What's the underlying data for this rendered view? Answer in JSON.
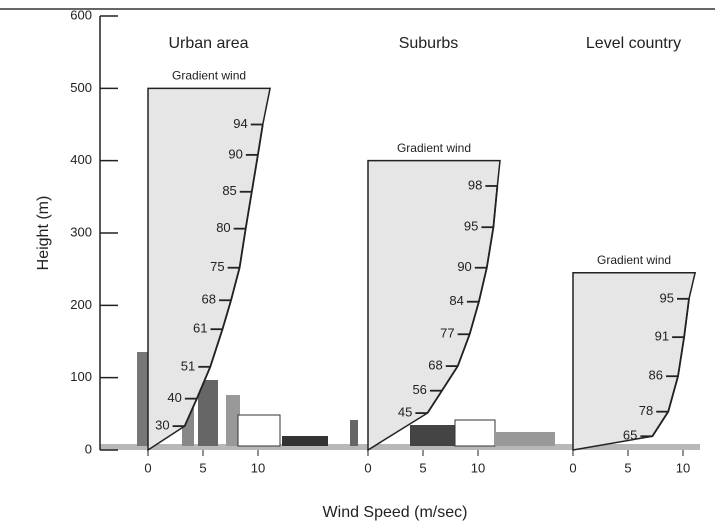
{
  "chart_data": {
    "type": "wind-profile",
    "y_label": "Height (m)",
    "x_label": "Wind Speed (m/sec)",
    "ylim": [
      0,
      600
    ],
    "yticks": [
      0,
      100,
      200,
      300,
      400,
      500,
      600
    ],
    "panels": [
      {
        "title": "Urban area",
        "gradient_label": "Gradient wind",
        "gradient_height": 500,
        "gradient_speed": 11.1,
        "xlim": [
          -1.5,
          12.5
        ],
        "xticks": [
          0,
          5,
          10
        ],
        "markers": [
          {
            "label": 30,
            "height": 33
          },
          {
            "label": 40,
            "height": 71
          },
          {
            "label": 51,
            "height": 115
          },
          {
            "label": 61,
            "height": 167
          },
          {
            "label": 68,
            "height": 207
          },
          {
            "label": 75,
            "height": 252
          },
          {
            "label": 80,
            "height": 306
          },
          {
            "label": 85,
            "height": 357
          },
          {
            "label": 90,
            "height": 408
          },
          {
            "label": 94,
            "height": 450
          }
        ]
      },
      {
        "title": "Suburbs",
        "gradient_label": "Gradient wind",
        "gradient_height": 400,
        "gradient_speed": 12,
        "xlim": [
          -1.5,
          12.5
        ],
        "xticks": [
          0,
          5,
          10
        ],
        "markers": [
          {
            "label": 45,
            "height": 51
          },
          {
            "label": 56,
            "height": 82
          },
          {
            "label": 68,
            "height": 116
          },
          {
            "label": 77,
            "height": 160
          },
          {
            "label": 84,
            "height": 205
          },
          {
            "label": 90,
            "height": 252
          },
          {
            "label": 95,
            "height": 308
          },
          {
            "label": 98,
            "height": 365
          }
        ]
      },
      {
        "title": "Level country",
        "gradient_label": "Gradient wind",
        "gradient_height": 245,
        "gradient_speed": 11.1,
        "xlim": [
          -1.5,
          12.5
        ],
        "xticks": [
          0,
          5,
          10
        ],
        "markers": [
          {
            "label": 65,
            "height": 19
          },
          {
            "label": 78,
            "height": 53
          },
          {
            "label": 86,
            "height": 102
          },
          {
            "label": 91,
            "height": 156
          },
          {
            "label": 95,
            "height": 209
          }
        ]
      }
    ]
  }
}
